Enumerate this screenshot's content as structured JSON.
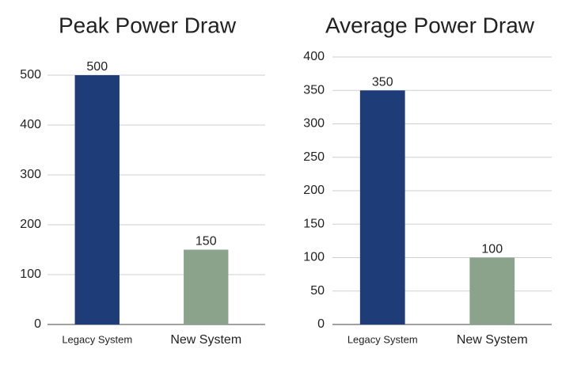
{
  "chart_data": [
    {
      "type": "bar",
      "title": "Peak Power Draw",
      "categories": [
        "Legacy System",
        "New System"
      ],
      "values": [
        500,
        150
      ],
      "colors": [
        "#1e3c78",
        "#8aa38a"
      ],
      "ylim": [
        0,
        500
      ],
      "yticks": [
        0,
        100,
        200,
        300,
        400,
        500
      ],
      "grid": true
    },
    {
      "type": "bar",
      "title": "Average Power Draw",
      "categories": [
        "Legacy System",
        "New System"
      ],
      "values": [
        350,
        100
      ],
      "colors": [
        "#1e3c78",
        "#8aa38a"
      ],
      "ylim": [
        0,
        400
      ],
      "yticks": [
        0,
        50,
        100,
        150,
        200,
        250,
        300,
        350,
        400
      ],
      "grid": true
    }
  ]
}
